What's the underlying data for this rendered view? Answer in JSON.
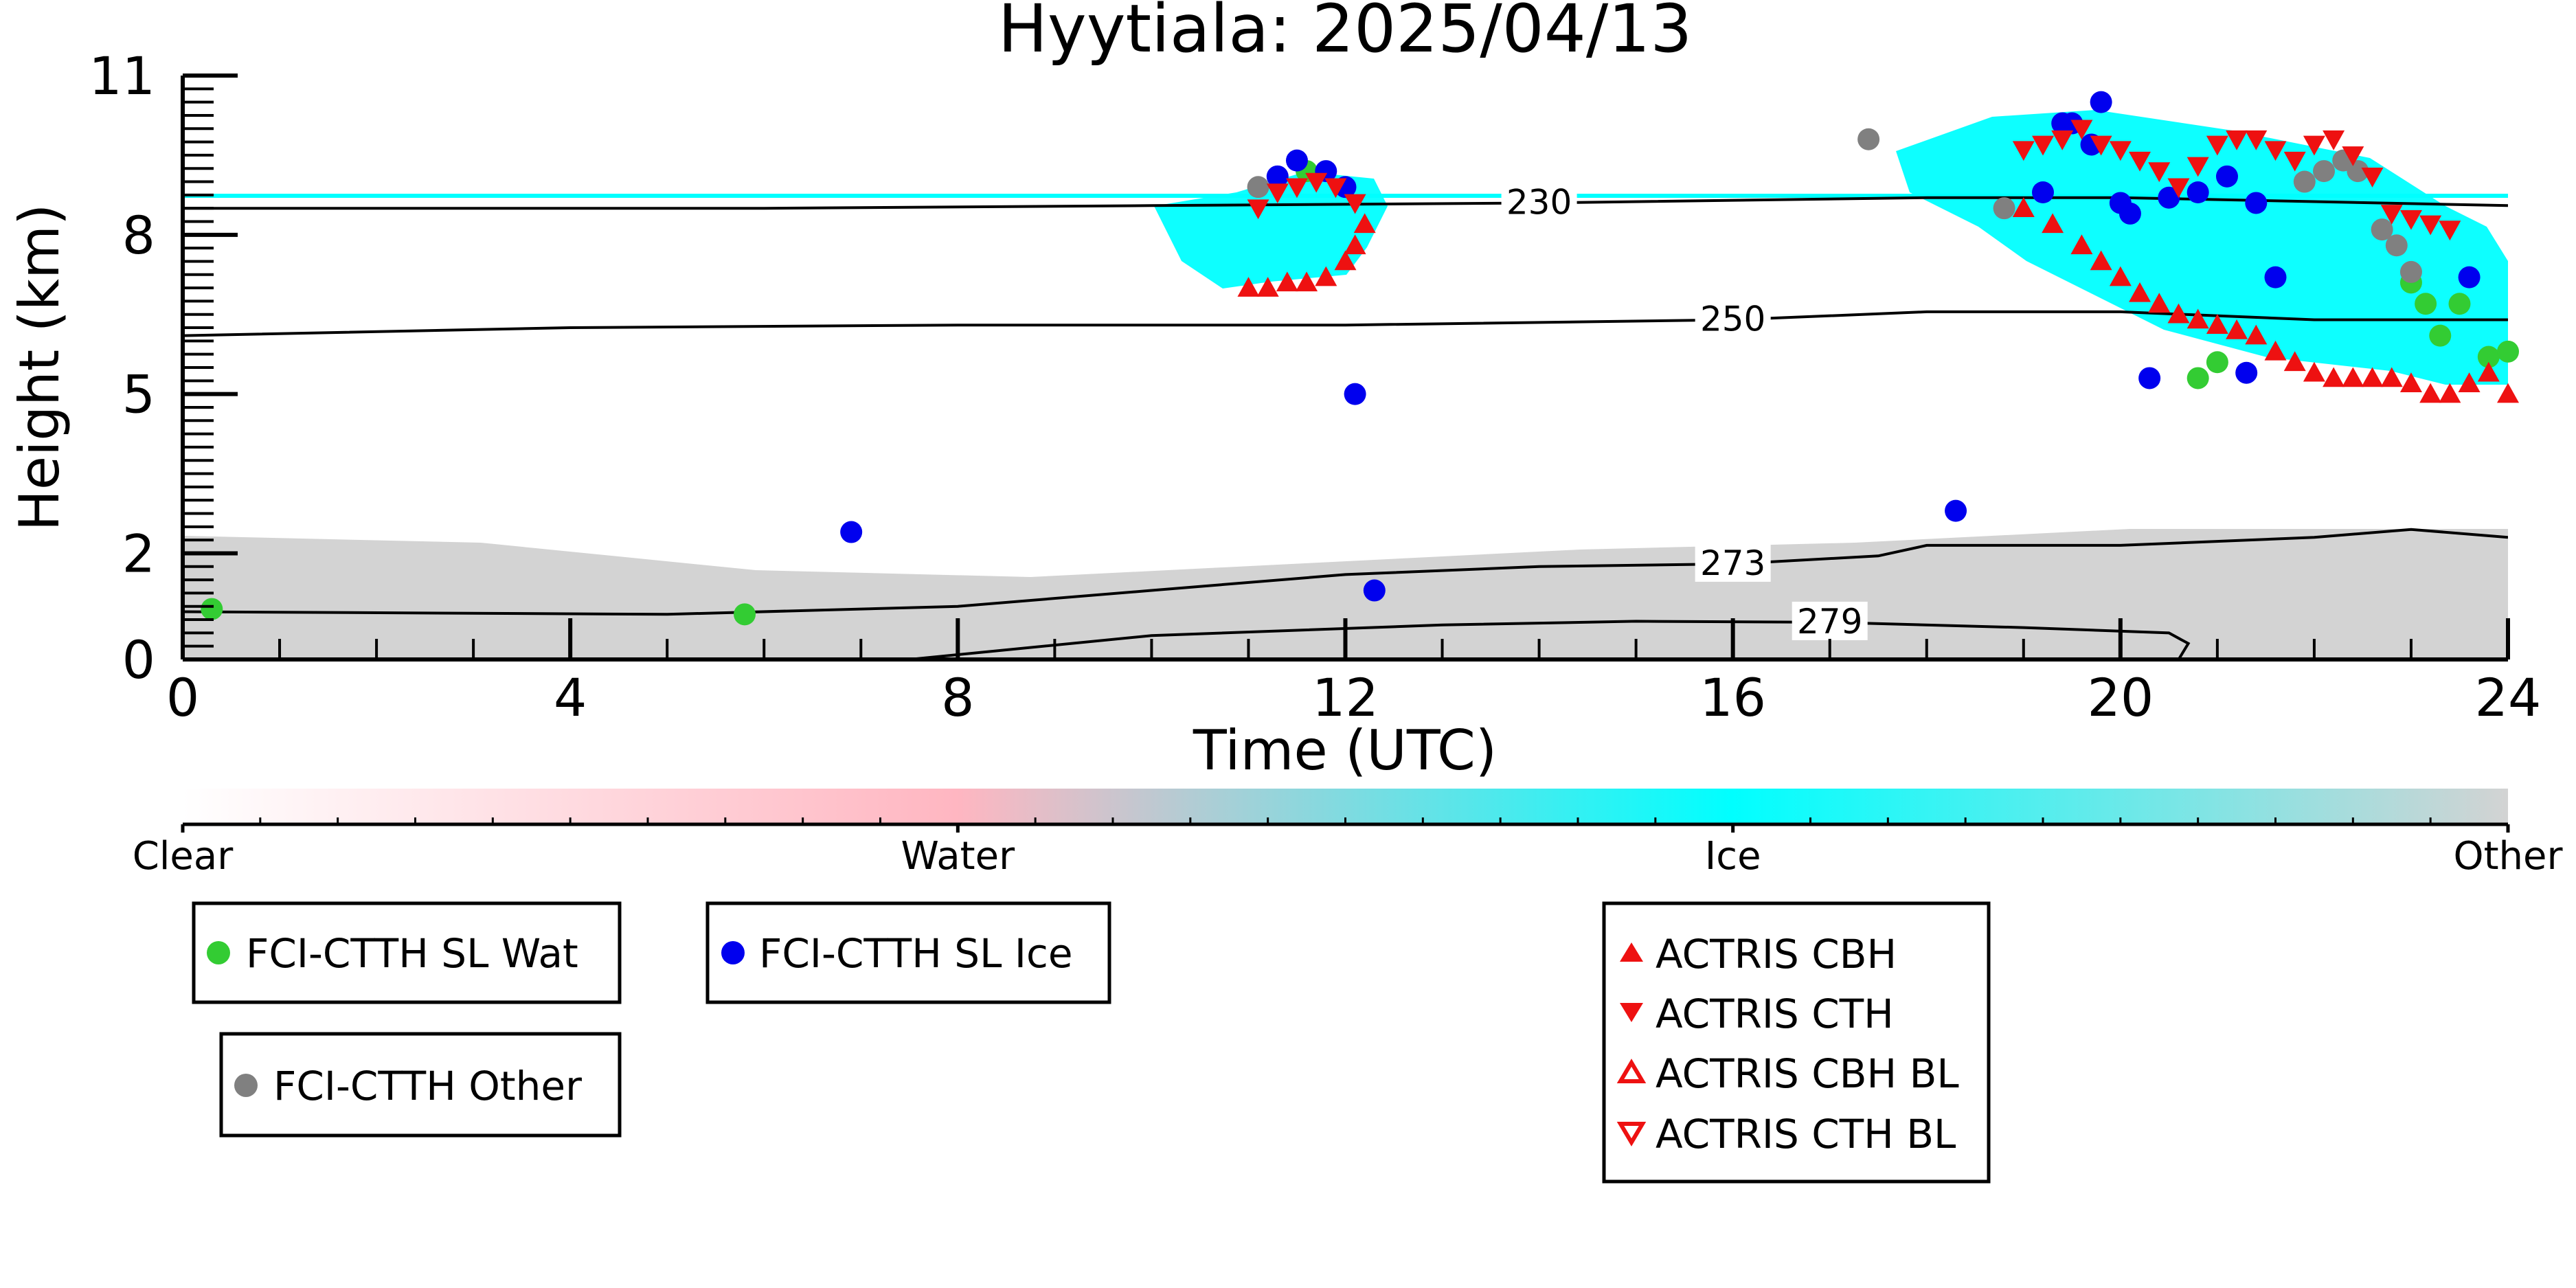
{
  "chart_data": {
    "type": "scatter",
    "title": "Hyytiala: 2025/04/13",
    "xlabel": "Time (UTC)",
    "ylabel": "Height (km)",
    "xlim": [
      0,
      24
    ],
    "ylim": [
      0,
      11
    ],
    "xticks": [
      0,
      4,
      8,
      12,
      16,
      20,
      24
    ],
    "yticks": [
      0,
      2,
      5,
      8,
      11
    ],
    "colorbar": {
      "labels": [
        "Clear",
        "Water",
        "Ice",
        "Other"
      ],
      "colors": [
        "#ffffff",
        "#ffb6c1",
        "#00ffff",
        "#d3d3d3"
      ]
    },
    "contours": [
      {
        "label": "230",
        "points": [
          [
            0,
            8.5
          ],
          [
            6,
            8.5
          ],
          [
            10,
            8.55
          ],
          [
            14,
            8.6
          ],
          [
            18,
            8.7
          ],
          [
            20,
            8.7
          ],
          [
            24,
            8.55
          ]
        ]
      },
      {
        "label": "250",
        "points": [
          [
            0,
            6.1
          ],
          [
            4,
            6.25
          ],
          [
            8,
            6.3
          ],
          [
            12,
            6.3
          ],
          [
            16,
            6.4
          ],
          [
            18,
            6.55
          ],
          [
            20,
            6.55
          ],
          [
            22,
            6.4
          ],
          [
            24,
            6.4
          ]
        ]
      },
      {
        "label": "273",
        "points": [
          [
            0,
            0.9
          ],
          [
            5,
            0.85
          ],
          [
            8,
            1.0
          ],
          [
            10,
            1.3
          ],
          [
            12,
            1.6
          ],
          [
            14,
            1.75
          ],
          [
            16,
            1.8
          ],
          [
            17.5,
            1.95
          ],
          [
            18,
            2.15
          ],
          [
            20,
            2.15
          ],
          [
            22,
            2.3
          ],
          [
            23,
            2.45
          ],
          [
            24,
            2.3
          ]
        ]
      },
      {
        "label": "279",
        "points": [
          [
            7.5,
            0.0
          ],
          [
            10,
            0.45
          ],
          [
            13,
            0.65
          ],
          [
            15,
            0.72
          ],
          [
            17,
            0.7
          ],
          [
            19,
            0.6
          ],
          [
            20.5,
            0.5
          ],
          [
            20.7,
            0.3
          ],
          [
            20.6,
            0.0
          ]
        ]
      }
    ],
    "series": [
      {
        "name": "FCI-CTTH SL Wat",
        "color": "#33cc33",
        "marker": "circle",
        "x": [
          0.3,
          5.8,
          11.6,
          20.8,
          21.0,
          23.0,
          23.15,
          23.3,
          23.5,
          23.8,
          24.0
        ],
        "y": [
          0.95,
          0.85,
          9.2,
          5.3,
          5.6,
          7.1,
          6.7,
          6.1,
          6.7,
          5.7,
          5.8
        ]
      },
      {
        "name": "FCI-CTTH SL Ice",
        "color": "#0000ee",
        "marker": "circle",
        "x": [
          6.9,
          12.1,
          12.3,
          11.3,
          11.5,
          11.8,
          12.0,
          18.3,
          19.2,
          19.4,
          19.5,
          19.7,
          19.8,
          20.0,
          20.1,
          20.3,
          20.5,
          20.8,
          21.1,
          21.3,
          21.4,
          21.6,
          23.6
        ],
        "y": [
          2.4,
          5.0,
          1.3,
          9.1,
          9.4,
          9.2,
          8.9,
          2.8,
          8.8,
          10.1,
          10.1,
          9.7,
          10.5,
          8.6,
          8.4,
          5.3,
          8.7,
          8.8,
          9.1,
          5.4,
          8.6,
          7.2,
          7.2
        ]
      },
      {
        "name": "FCI-CTTH Other",
        "color": "#808080",
        "marker": "circle",
        "x": [
          11.1,
          17.4,
          18.8,
          21.9,
          22.1,
          22.3,
          22.45,
          22.7,
          22.85,
          23.0
        ],
        "y": [
          8.9,
          9.8,
          8.5,
          9.0,
          9.2,
          9.4,
          9.2,
          8.1,
          7.8,
          7.3
        ]
      },
      {
        "name": "ACTRIS CBH",
        "color": "#ee1111",
        "marker": "triangle-up",
        "x": [
          11.0,
          11.2,
          11.4,
          11.6,
          11.8,
          12.0,
          12.1,
          12.2,
          19.0,
          19.3,
          19.6,
          19.8,
          20.0,
          20.2,
          20.4,
          20.6,
          20.8,
          21.0,
          21.2,
          21.4,
          21.6,
          21.8,
          22.0,
          22.2,
          22.4,
          22.6,
          22.8,
          23.0,
          23.2,
          23.4,
          23.6,
          23.8,
          24.0
        ],
        "y": [
          7.0,
          7.0,
          7.1,
          7.1,
          7.2,
          7.5,
          7.8,
          8.2,
          8.5,
          8.2,
          7.8,
          7.5,
          7.2,
          6.9,
          6.7,
          6.5,
          6.4,
          6.3,
          6.2,
          6.1,
          5.8,
          5.6,
          5.4,
          5.3,
          5.3,
          5.3,
          5.3,
          5.2,
          5.0,
          5.0,
          5.2,
          5.4,
          5.0
        ]
      },
      {
        "name": "ACTRIS CTH",
        "color": "#ee1111",
        "marker": "triangle-down",
        "x": [
          11.1,
          11.3,
          11.5,
          11.7,
          11.9,
          12.1,
          19.0,
          19.2,
          19.4,
          19.6,
          19.8,
          20.0,
          20.2,
          20.4,
          20.6,
          20.8,
          21.0,
          21.2,
          21.4,
          21.6,
          21.8,
          22.0,
          22.2,
          22.4,
          22.6,
          22.8,
          23.0,
          23.2,
          23.4
        ],
        "y": [
          8.5,
          8.8,
          8.9,
          9.0,
          8.9,
          8.6,
          9.6,
          9.7,
          9.8,
          10.0,
          9.7,
          9.6,
          9.4,
          9.2,
          8.9,
          9.3,
          9.7,
          9.8,
          9.8,
          9.6,
          9.4,
          9.7,
          9.8,
          9.5,
          9.1,
          8.4,
          8.3,
          8.2,
          8.1
        ]
      },
      {
        "name": "ACTRIS CBH BL",
        "color": "#ee1111",
        "marker": "triangle-up-open",
        "x": [],
        "y": []
      },
      {
        "name": "ACTRIS CTH BL",
        "color": "#ee1111",
        "marker": "triangle-down-open",
        "x": [],
        "y": []
      }
    ]
  }
}
